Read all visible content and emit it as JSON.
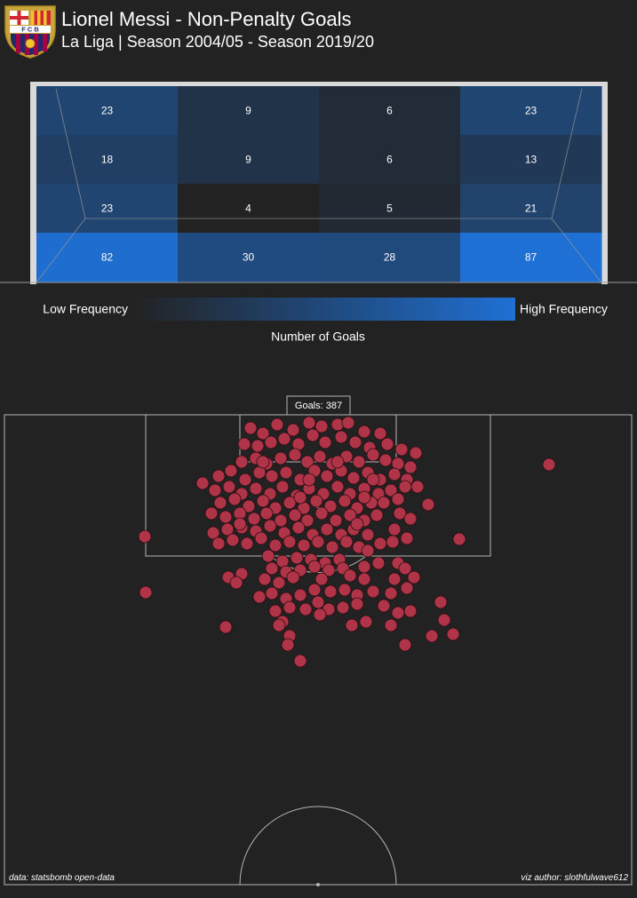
{
  "header": {
    "title": "Lionel Messi - Non-Penalty Goals",
    "subtitle": "La Liga | Season 2004/05 - Season 2019/20"
  },
  "crest": {
    "top_text": "F C B",
    "icon": "fc-barcelona-crest-icon"
  },
  "colors": {
    "background": "#222222",
    "low": "#222222",
    "high": "#1f70d4",
    "shot": "#b03448",
    "shot_edge": "#2a0e14",
    "lines": "#b5b5b5"
  },
  "colorbar": {
    "low_label": "Low Frequency",
    "high_label": "High Frequency",
    "title": "Number of Goals"
  },
  "pitch": {
    "goals_label": "Goals: 387"
  },
  "footer": {
    "left": "data: statsbomb open-data",
    "right": "viz author: slothfulwave612"
  },
  "chart_data": [
    {
      "type": "heatmap",
      "description_source": "goal-mouth frequency grid, rows top to bottom, columns left to right",
      "values": [
        [
          23,
          9,
          6,
          23
        ],
        [
          18,
          9,
          6,
          13
        ],
        [
          23,
          4,
          5,
          21
        ],
        [
          82,
          30,
          28,
          87
        ]
      ],
      "vmin": 4,
      "vmax": 87
    },
    {
      "type": "scatter",
      "total_goals": 387,
      "points": [
        [
          282,
          482
        ],
        [
          296,
          488
        ],
        [
          312,
          478
        ],
        [
          330,
          484
        ],
        [
          348,
          476
        ],
        [
          362,
          480
        ],
        [
          380,
          478
        ],
        [
          392,
          476
        ],
        [
          410,
          486
        ],
        [
          428,
          488
        ],
        [
          275,
          500
        ],
        [
          290,
          502
        ],
        [
          305,
          498
        ],
        [
          320,
          494
        ],
        [
          336,
          500
        ],
        [
          352,
          490
        ],
        [
          366,
          498
        ],
        [
          384,
          492
        ],
        [
          400,
          498
        ],
        [
          416,
          504
        ],
        [
          436,
          500
        ],
        [
          452,
          506
        ],
        [
          468,
          510
        ],
        [
          272,
          520
        ],
        [
          288,
          516
        ],
        [
          300,
          522
        ],
        [
          316,
          516
        ],
        [
          332,
          512
        ],
        [
          346,
          520
        ],
        [
          360,
          514
        ],
        [
          374,
          522
        ],
        [
          390,
          514
        ],
        [
          404,
          520
        ],
        [
          420,
          512
        ],
        [
          434,
          518
        ],
        [
          448,
          522
        ],
        [
          462,
          526
        ],
        [
          246,
          536
        ],
        [
          260,
          530
        ],
        [
          276,
          540
        ],
        [
          292,
          532
        ],
        [
          306,
          536
        ],
        [
          322,
          532
        ],
        [
          338,
          540
        ],
        [
          354,
          530
        ],
        [
          368,
          536
        ],
        [
          384,
          530
        ],
        [
          398,
          538
        ],
        [
          414,
          532
        ],
        [
          428,
          540
        ],
        [
          444,
          534
        ],
        [
          458,
          540
        ],
        [
          228,
          544
        ],
        [
          242,
          552
        ],
        [
          258,
          548
        ],
        [
          272,
          556
        ],
        [
          288,
          550
        ],
        [
          304,
          556
        ],
        [
          318,
          548
        ],
        [
          334,
          558
        ],
        [
          348,
          550
        ],
        [
          364,
          556
        ],
        [
          380,
          548
        ],
        [
          394,
          556
        ],
        [
          410,
          550
        ],
        [
          426,
          556
        ],
        [
          440,
          552
        ],
        [
          456,
          548
        ],
        [
          470,
          548
        ],
        [
          248,
          566
        ],
        [
          264,
          562
        ],
        [
          280,
          570
        ],
        [
          296,
          564
        ],
        [
          310,
          572
        ],
        [
          326,
          566
        ],
        [
          342,
          572
        ],
        [
          356,
          564
        ],
        [
          372,
          570
        ],
        [
          388,
          564
        ],
        [
          402,
          572
        ],
        [
          418,
          566
        ],
        [
          432,
          566
        ],
        [
          448,
          562
        ],
        [
          482,
          568
        ],
        [
          238,
          578
        ],
        [
          254,
          582
        ],
        [
          270,
          578
        ],
        [
          286,
          584
        ],
        [
          300,
          578
        ],
        [
          316,
          586
        ],
        [
          332,
          580
        ],
        [
          346,
          586
        ],
        [
          362,
          578
        ],
        [
          378,
          586
        ],
        [
          394,
          580
        ],
        [
          410,
          586
        ],
        [
          424,
          580
        ],
        [
          450,
          578
        ],
        [
          462,
          584
        ],
        [
          240,
          600
        ],
        [
          256,
          596
        ],
        [
          272,
          594
        ],
        [
          288,
          598
        ],
        [
          304,
          592
        ],
        [
          320,
          600
        ],
        [
          336,
          594
        ],
        [
          352,
          602
        ],
        [
          368,
          596
        ],
        [
          384,
          602
        ],
        [
          398,
          596
        ],
        [
          414,
          602
        ],
        [
          444,
          596
        ],
        [
          458,
          606
        ],
        [
          163,
          604
        ],
        [
          517,
          607
        ],
        [
          246,
          612
        ],
        [
          262,
          608
        ],
        [
          278,
          612
        ],
        [
          294,
          606
        ],
        [
          310,
          614
        ],
        [
          326,
          610
        ],
        [
          342,
          614
        ],
        [
          358,
          610
        ],
        [
          374,
          616
        ],
        [
          390,
          610
        ],
        [
          404,
          616
        ],
        [
          428,
          612
        ],
        [
          442,
          610
        ],
        [
          302,
          626
        ],
        [
          318,
          632
        ],
        [
          334,
          628
        ],
        [
          350,
          630
        ],
        [
          366,
          634
        ],
        [
          382,
          630
        ],
        [
          414,
          620
        ],
        [
          448,
          634
        ],
        [
          306,
          640
        ],
        [
          322,
          644
        ],
        [
          338,
          642
        ],
        [
          354,
          638
        ],
        [
          370,
          642
        ],
        [
          386,
          640
        ],
        [
          410,
          638
        ],
        [
          426,
          634
        ],
        [
          456,
          640
        ],
        [
          257,
          650
        ],
        [
          272,
          646
        ],
        [
          298,
          652
        ],
        [
          314,
          656
        ],
        [
          330,
          650
        ],
        [
          362,
          652
        ],
        [
          394,
          648
        ],
        [
          410,
          652
        ],
        [
          444,
          652
        ],
        [
          466,
          650
        ],
        [
          266,
          656
        ],
        [
          164,
          667
        ],
        [
          292,
          672
        ],
        [
          306,
          668
        ],
        [
          322,
          674
        ],
        [
          338,
          670
        ],
        [
          354,
          664
        ],
        [
          372,
          666
        ],
        [
          388,
          664
        ],
        [
          402,
          670
        ],
        [
          420,
          666
        ],
        [
          440,
          668
        ],
        [
          458,
          662
        ],
        [
          310,
          688
        ],
        [
          326,
          684
        ],
        [
          344,
          686
        ],
        [
          358,
          678
        ],
        [
          370,
          686
        ],
        [
          386,
          684
        ],
        [
          402,
          680
        ],
        [
          432,
          682
        ],
        [
          448,
          690
        ],
        [
          462,
          688
        ],
        [
          496,
          678
        ],
        [
          318,
          700
        ],
        [
          360,
          692
        ],
        [
          396,
          704
        ],
        [
          412,
          700
        ],
        [
          440,
          704
        ],
        [
          500,
          698
        ],
        [
          254,
          706
        ],
        [
          314,
          704
        ],
        [
          326,
          716
        ],
        [
          486,
          716
        ],
        [
          510,
          714
        ],
        [
          324,
          726
        ],
        [
          456,
          726
        ],
        [
          338,
          744
        ],
        [
          618,
          523
        ],
        [
          296,
          520
        ],
        [
          380,
          520
        ],
        [
          348,
          540
        ],
        [
          420,
          540
        ],
        [
          270,
          590
        ],
        [
          402,
          590
        ],
        [
          338,
          560
        ],
        [
          410,
          560
        ]
      ]
    }
  ]
}
